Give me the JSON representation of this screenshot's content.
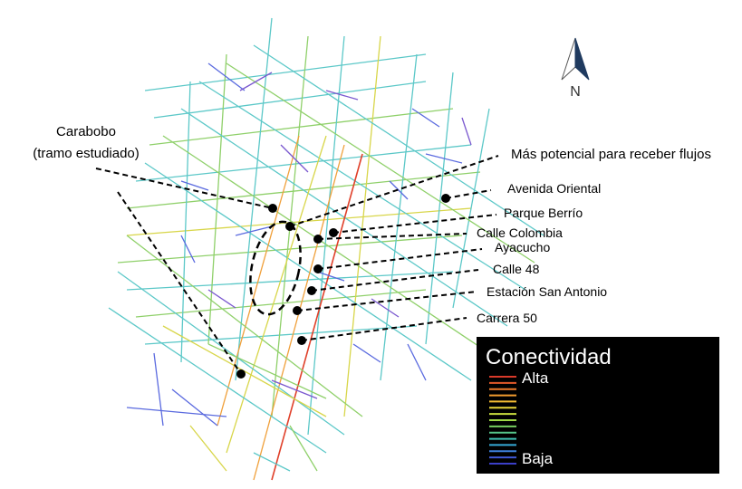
{
  "map": {
    "north_label": "N",
    "labels": {
      "carabobo_1": "Carabobo",
      "carabobo_2": "(tramo estudiado)",
      "mas_potencial": "Más potencial para receber flujos",
      "avenida_oriental": "Avenida Oriental",
      "parque_berrio": "Parque Berrío",
      "calle_colombia": "Calle Colombia",
      "ayacucho": "Ayacucho",
      "calle_48": "Calle 48",
      "estacion_san_antonio": "Estación San Antonio",
      "carrera_50": "Carrera 50"
    },
    "legend": {
      "title": "Conectividad",
      "high": "Alta",
      "low": "Baja",
      "colors": [
        "#d93a2a",
        "#e2592a",
        "#ec7a2a",
        "#f29b2e",
        "#f6bd33",
        "#e9d63a",
        "#c9dd3e",
        "#9fd646",
        "#77cd60",
        "#56c58a",
        "#3fc0b2",
        "#35a9d6",
        "#3d7fdb",
        "#3f58d6",
        "#3b3fc8"
      ]
    },
    "colors": {
      "red": "#e0402a",
      "orange": "#f0a03a",
      "yellow": "#d8d64a",
      "green": "#8fd06a",
      "cyan": "#5cc8c8",
      "blue": "#5a6adf",
      "purple": "#7a58cf"
    }
  }
}
